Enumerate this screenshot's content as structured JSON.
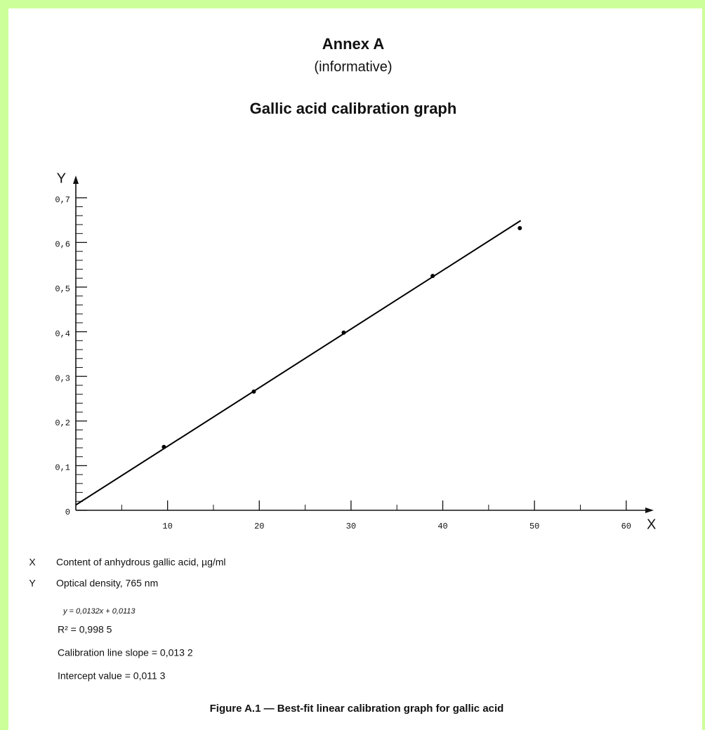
{
  "header": {
    "title": "Annex A",
    "subtitle": "(informative)",
    "heading": "Gallic acid calibration graph"
  },
  "chart_data": {
    "type": "scatter",
    "xlabel": "X",
    "ylabel": "Y",
    "series": [
      {
        "type": "scatter",
        "color": "#000000",
        "x": [
          9.6,
          19.4,
          29.2,
          38.9,
          48.4
        ],
        "values": [
          0.142,
          0.266,
          0.398,
          0.525,
          0.632
        ]
      },
      {
        "type": "line",
        "color": "#000000",
        "x": [
          0,
          48.5
        ],
        "values": [
          0.012,
          0.649
        ]
      }
    ],
    "xlim": [
      0,
      63
    ],
    "ylim": [
      0,
      0.75
    ],
    "xticks": [
      10,
      20,
      30,
      40,
      50,
      60
    ],
    "xminorticks": [
      5,
      15,
      25,
      35,
      45,
      55
    ],
    "yticks": [
      0,
      {
        "value": 0.1,
        "label": "0,1"
      },
      {
        "value": 0.2,
        "label": "0,2"
      },
      {
        "value": 0.3,
        "label": "0,3"
      },
      {
        "value": 0.4,
        "label": "0,4"
      },
      {
        "value": 0.5,
        "label": "0,5"
      },
      {
        "value": 0.6,
        "label": "0,6"
      },
      {
        "value": 0.7,
        "label": "0,7"
      }
    ],
    "yminorticks": [
      0.02,
      0.04,
      0.06,
      0.08,
      0.12,
      0.14,
      0.16,
      0.18,
      0.22,
      0.24,
      0.26,
      0.28,
      0.32,
      0.34,
      0.36,
      0.38,
      0.42,
      0.44,
      0.46,
      0.48,
      0.52,
      0.54,
      0.56,
      0.58,
      0.62,
      0.64,
      0.66,
      0.68
    ]
  },
  "key": [
    {
      "symbol": "X",
      "text": "Content of anhydrous gallic acid, µg/ml"
    },
    {
      "symbol": "Y",
      "text": "Optical density, 765 nm"
    }
  ],
  "notes": {
    "equation": "y = 0,0132x + 0,0113",
    "r2": "R² = 0,998 5",
    "slope": "Calibration line slope = 0,013 2",
    "intercept": "Intercept value = 0,011 3"
  },
  "caption": "Figure A.1 — Best-fit linear calibration graph for gallic acid"
}
